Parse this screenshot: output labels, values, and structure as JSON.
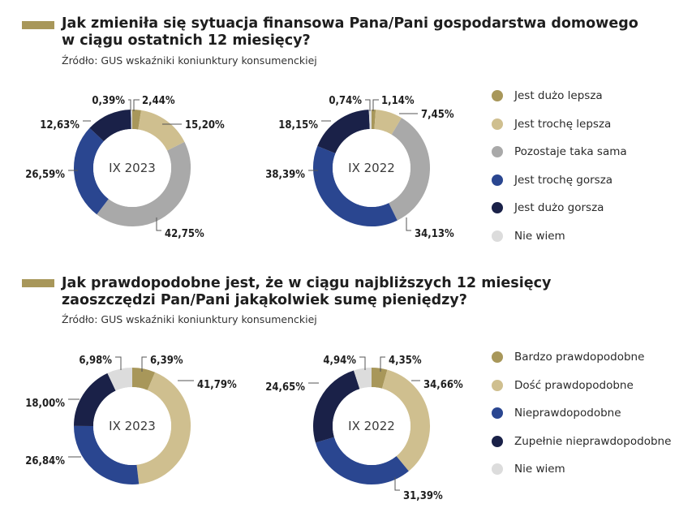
{
  "colors": {
    "accent": "#a8975a",
    "much_better": "#a8975a",
    "somewhat_better": "#cfbf8f",
    "same": "#a9a9a9",
    "somewhat_worse": "#2a4690",
    "much_worse": "#1a2148",
    "dont_know": "#dcdcdc"
  },
  "section1": {
    "title_line1": "Jak zmieniła się sytuacja finansowa Pana/Pani gospodarstwa domowego",
    "title_line2": "w ciągu ostatnich 12 miesięcy?",
    "source": "Źródło: GUS wskaźniki koniunktury konsumenckiej",
    "legend": [
      {
        "label": "Jest dużo lepsza",
        "color": "#a8975a"
      },
      {
        "label": "Jest trochę lepsza",
        "color": "#cfbf8f"
      },
      {
        "label": "Pozostaje taka sama",
        "color": "#a9a9a9"
      },
      {
        "label": "Jest trochę gorsza",
        "color": "#2a4690"
      },
      {
        "label": "Jest dużo gorsza",
        "color": "#1a2148"
      },
      {
        "label": "Nie wiem",
        "color": "#dcdcdc"
      }
    ]
  },
  "section2": {
    "title_line1": "Jak prawdopodobne jest, że w ciągu najbliższych 12 miesięcy",
    "title_line2": "zaoszczędzi Pan/Pani jakąkolwiek sumę pieniędzy?",
    "source": "Źródło: GUS wskaźniki koniunktury konsumenckiej",
    "legend": [
      {
        "label": "Bardzo prawdopodobne",
        "color": "#a8975a"
      },
      {
        "label": "Dość prawdopodobne",
        "color": "#cfbf8f"
      },
      {
        "label": "Nieprawdopodobne",
        "color": "#2a4690"
      },
      {
        "label": "Zupełnie nieprawdopodobne",
        "color": "#1a2148"
      },
      {
        "label": "Nie wiem",
        "color": "#dcdcdc"
      }
    ]
  },
  "chart_data": [
    {
      "type": "pie",
      "donut": true,
      "center_label": "IX 2023",
      "categories": [
        "Jest dużo lepsza",
        "Jest trochę lepsza",
        "Pozostaje taka sama",
        "Jest trochę gorsza",
        "Jest dużo gorsza",
        "Nie wiem"
      ],
      "values": [
        2.44,
        15.2,
        42.75,
        26.59,
        12.63,
        0.39
      ],
      "labels": [
        "2,44%",
        "15,20%",
        "42,75%",
        "26,59%",
        "12,63%",
        "0,39%"
      ],
      "colors": [
        "#a8975a",
        "#cfbf8f",
        "#a9a9a9",
        "#2a4690",
        "#1a2148",
        "#dcdcdc"
      ]
    },
    {
      "type": "pie",
      "donut": true,
      "center_label": "IX 2022",
      "categories": [
        "Jest dużo lepsza",
        "Jest trochę lepsza",
        "Pozostaje taka sama",
        "Jest trochę gorsza",
        "Jest dużo gorsza",
        "Nie wiem"
      ],
      "values": [
        1.14,
        7.45,
        34.13,
        38.39,
        18.15,
        0.74
      ],
      "labels": [
        "1,14%",
        "7,45%",
        "34,13%",
        "38,39%",
        "18,15%",
        "0,74%"
      ],
      "colors": [
        "#a8975a",
        "#cfbf8f",
        "#a9a9a9",
        "#2a4690",
        "#1a2148",
        "#dcdcdc"
      ]
    },
    {
      "type": "pie",
      "donut": true,
      "center_label": "IX 2023",
      "categories": [
        "Bardzo prawdopodobne",
        "Dość prawdopodobne",
        "Nieprawdopodobne",
        "Zupełnie nieprawdopodobne",
        "Nie wiem"
      ],
      "values": [
        6.39,
        41.79,
        26.84,
        18.0,
        6.98
      ],
      "labels": [
        "6,39%",
        "41,79%",
        "26,84%",
        "18,00%",
        "6,98%"
      ],
      "colors": [
        "#a8975a",
        "#cfbf8f",
        "#2a4690",
        "#1a2148",
        "#dcdcdc"
      ]
    },
    {
      "type": "pie",
      "donut": true,
      "center_label": "IX 2022",
      "categories": [
        "Bardzo prawdopodobne",
        "Dość prawdopodobne",
        "Nieprawdopodobne",
        "Zupełnie nieprawdopodobne",
        "Nie wiem"
      ],
      "values": [
        4.35,
        34.66,
        31.39,
        24.65,
        4.94
      ],
      "labels": [
        "4,35%",
        "34,66%",
        "31,39%",
        "24,65%",
        "4,94%"
      ],
      "colors": [
        "#a8975a",
        "#cfbf8f",
        "#2a4690",
        "#1a2148",
        "#dcdcdc"
      ]
    }
  ]
}
